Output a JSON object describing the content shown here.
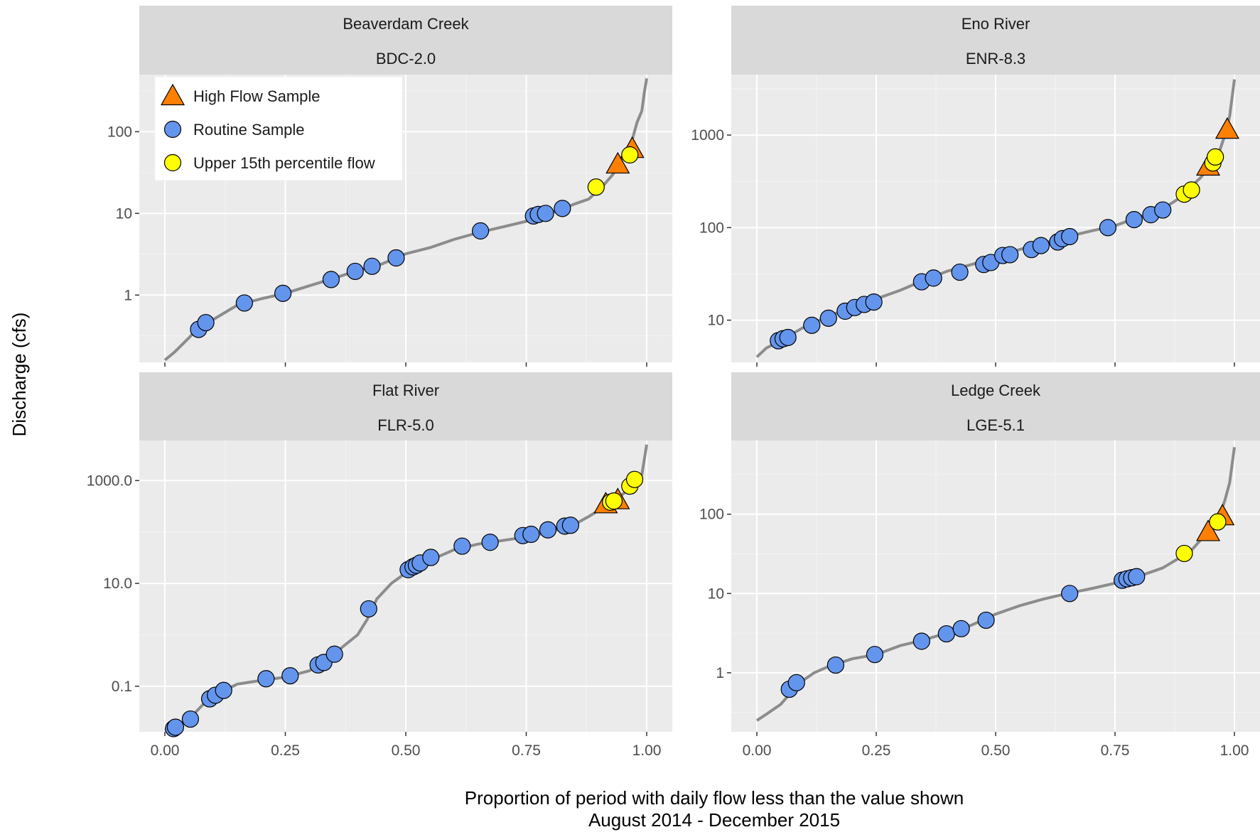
{
  "chart_data": {
    "type": "scatter",
    "ylabel": "Discharge (cfs)",
    "xlabel": "Proportion of period with daily flow less than the value shown",
    "xlabel2": "August 2014 - December 2015",
    "y_scale": "log10",
    "grid": true,
    "legend_position": "top-left",
    "legend": [
      {
        "name": "High Flow Sample",
        "shape": "triangle",
        "color": "#ff7f00"
      },
      {
        "name": "Routine Sample",
        "shape": "circle",
        "color": "#6495ed"
      },
      {
        "name": "Upper 15th percentile flow",
        "shape": "circle",
        "color": "#ffff00"
      }
    ],
    "colors": {
      "curve": "#8c8c8c",
      "panel": "#ebebeb",
      "strip": "#d9d9d9",
      "grid": "#ffffff"
    },
    "x_ticks": [
      "0.00",
      "0.25",
      "0.50",
      "0.75",
      "1.00"
    ],
    "panels": [
      {
        "title": "Beaverdam Creek",
        "site": "BDC-2.0",
        "ylim": [
          0.15,
          500
        ],
        "y_ticks": [
          {
            "v": 1,
            "label": "1"
          },
          {
            "v": 10,
            "label": "10"
          },
          {
            "v": 100,
            "label": "100"
          }
        ],
        "curve": [
          [
            0.0,
            0.16
          ],
          [
            0.02,
            0.2
          ],
          [
            0.05,
            0.3
          ],
          [
            0.07,
            0.4
          ],
          [
            0.1,
            0.5
          ],
          [
            0.15,
            0.75
          ],
          [
            0.2,
            0.9
          ],
          [
            0.25,
            1.05
          ],
          [
            0.3,
            1.3
          ],
          [
            0.35,
            1.6
          ],
          [
            0.4,
            2.0
          ],
          [
            0.45,
            2.4
          ],
          [
            0.5,
            3.2
          ],
          [
            0.55,
            3.8
          ],
          [
            0.6,
            4.8
          ],
          [
            0.65,
            5.8
          ],
          [
            0.7,
            6.8
          ],
          [
            0.75,
            8.0
          ],
          [
            0.8,
            10.0
          ],
          [
            0.85,
            13.0
          ],
          [
            0.88,
            15.0
          ],
          [
            0.91,
            22
          ],
          [
            0.93,
            30
          ],
          [
            0.95,
            48
          ],
          [
            0.97,
            80
          ],
          [
            0.98,
            130
          ],
          [
            0.99,
            180
          ],
          [
            0.995,
            300
          ],
          [
            1.0,
            450
          ]
        ],
        "routine": [
          [
            0.07,
            0.38
          ],
          [
            0.085,
            0.46
          ],
          [
            0.165,
            0.8
          ],
          [
            0.245,
            1.05
          ],
          [
            0.345,
            1.55
          ],
          [
            0.395,
            1.95
          ],
          [
            0.43,
            2.25
          ],
          [
            0.48,
            2.85
          ],
          [
            0.655,
            6.1
          ],
          [
            0.765,
            9.3
          ],
          [
            0.775,
            9.7
          ],
          [
            0.79,
            10.0
          ],
          [
            0.825,
            11.5
          ]
        ],
        "high_flow": [
          [
            0.94,
            40
          ],
          [
            0.97,
            62
          ]
        ],
        "upper15": [
          [
            0.895,
            21
          ],
          [
            0.965,
            52
          ]
        ]
      },
      {
        "title": "Eno River",
        "site": "ENR-8.3",
        "ylim": [
          3.5,
          4500
        ],
        "y_ticks": [
          {
            "v": 10,
            "label": "10"
          },
          {
            "v": 100,
            "label": "100"
          },
          {
            "v": 1000,
            "label": "1000"
          }
        ],
        "curve": [
          [
            0.0,
            4.0
          ],
          [
            0.02,
            5.0
          ],
          [
            0.05,
            6.0
          ],
          [
            0.1,
            8.5
          ],
          [
            0.15,
            11
          ],
          [
            0.2,
            14
          ],
          [
            0.25,
            17
          ],
          [
            0.3,
            21
          ],
          [
            0.35,
            27
          ],
          [
            0.4,
            34
          ],
          [
            0.45,
            40
          ],
          [
            0.5,
            48
          ],
          [
            0.55,
            58
          ],
          [
            0.6,
            68
          ],
          [
            0.65,
            80
          ],
          [
            0.7,
            92
          ],
          [
            0.75,
            105
          ],
          [
            0.8,
            130
          ],
          [
            0.85,
            160
          ],
          [
            0.88,
            200
          ],
          [
            0.9,
            250
          ],
          [
            0.93,
            350
          ],
          [
            0.95,
            480
          ],
          [
            0.97,
            700
          ],
          [
            0.98,
            1000
          ],
          [
            0.99,
            1600
          ],
          [
            1.0,
            4000
          ]
        ],
        "routine": [
          [
            0.045,
            6.0
          ],
          [
            0.055,
            6.3
          ],
          [
            0.065,
            6.5
          ],
          [
            0.115,
            8.8
          ],
          [
            0.15,
            10.5
          ],
          [
            0.185,
            12.5
          ],
          [
            0.205,
            13.7
          ],
          [
            0.225,
            14.8
          ],
          [
            0.245,
            15.7
          ],
          [
            0.345,
            26
          ],
          [
            0.37,
            28.5
          ],
          [
            0.425,
            33
          ],
          [
            0.475,
            40
          ],
          [
            0.49,
            42
          ],
          [
            0.515,
            50
          ],
          [
            0.53,
            51
          ],
          [
            0.575,
            58
          ],
          [
            0.595,
            64
          ],
          [
            0.63,
            70
          ],
          [
            0.64,
            76
          ],
          [
            0.655,
            80
          ],
          [
            0.735,
            100
          ],
          [
            0.79,
            122
          ],
          [
            0.825,
            138
          ],
          [
            0.85,
            155
          ]
        ],
        "high_flow": [
          [
            0.945,
            460
          ],
          [
            0.985,
            1150
          ]
        ],
        "upper15": [
          [
            0.895,
            230
          ],
          [
            0.91,
            255
          ],
          [
            0.955,
            500
          ],
          [
            0.96,
            580
          ]
        ]
      },
      {
        "title": "Flat River",
        "site": "FLR-5.0",
        "ylim": [
          0.013,
          6000
        ],
        "y_ticks": [
          {
            "v": 0.1,
            "label": "0.1"
          },
          {
            "v": 10,
            "label": "10.0"
          },
          {
            "v": 1000,
            "label": "1000.0"
          }
        ],
        "curve": [
          [
            0.0,
            0.014
          ],
          [
            0.02,
            0.016
          ],
          [
            0.05,
            0.023
          ],
          [
            0.08,
            0.045
          ],
          [
            0.1,
            0.06
          ],
          [
            0.12,
            0.08
          ],
          [
            0.15,
            0.11
          ],
          [
            0.2,
            0.13
          ],
          [
            0.25,
            0.15
          ],
          [
            0.3,
            0.2
          ],
          [
            0.33,
            0.3
          ],
          [
            0.36,
            0.5
          ],
          [
            0.4,
            1.0
          ],
          [
            0.42,
            2.0
          ],
          [
            0.44,
            5.0
          ],
          [
            0.47,
            10.0
          ],
          [
            0.5,
            16
          ],
          [
            0.53,
            22
          ],
          [
            0.55,
            28
          ],
          [
            0.6,
            45
          ],
          [
            0.65,
            58
          ],
          [
            0.7,
            68
          ],
          [
            0.75,
            80
          ],
          [
            0.8,
            100
          ],
          [
            0.85,
            140
          ],
          [
            0.88,
            200
          ],
          [
            0.91,
            300
          ],
          [
            0.94,
            450
          ],
          [
            0.96,
            650
          ],
          [
            0.98,
            900
          ],
          [
            0.99,
            1300
          ],
          [
            1.0,
            5000
          ]
        ],
        "routine": [
          [
            0.018,
            0.015
          ],
          [
            0.022,
            0.016
          ],
          [
            0.053,
            0.023
          ],
          [
            0.093,
            0.057
          ],
          [
            0.105,
            0.067
          ],
          [
            0.122,
            0.083
          ],
          [
            0.21,
            0.14
          ],
          [
            0.26,
            0.16
          ],
          [
            0.318,
            0.26
          ],
          [
            0.33,
            0.29
          ],
          [
            0.352,
            0.42
          ],
          [
            0.423,
            3.2
          ],
          [
            0.505,
            18.5
          ],
          [
            0.515,
            21
          ],
          [
            0.522,
            22.5
          ],
          [
            0.53,
            25
          ],
          [
            0.552,
            32
          ],
          [
            0.617,
            53
          ],
          [
            0.675,
            63
          ],
          [
            0.743,
            85
          ],
          [
            0.76,
            90
          ],
          [
            0.795,
            110
          ],
          [
            0.83,
            130
          ],
          [
            0.842,
            135
          ]
        ],
        "high_flow": [
          [
            0.915,
            350
          ],
          [
            0.94,
            420
          ]
        ],
        "upper15": [
          [
            0.925,
            380
          ],
          [
            0.932,
            400
          ],
          [
            0.965,
            780
          ],
          [
            0.975,
            1050
          ]
        ]
      },
      {
        "title": "Ledge Creek",
        "site": "LGE-5.1",
        "ylim": [
          0.18,
          850
        ],
        "y_ticks": [
          {
            "v": 1,
            "label": "1"
          },
          {
            "v": 10,
            "label": "10"
          },
          {
            "v": 100,
            "label": "100"
          }
        ],
        "curve": [
          [
            0.0,
            0.25
          ],
          [
            0.02,
            0.3
          ],
          [
            0.05,
            0.4
          ],
          [
            0.07,
            0.55
          ],
          [
            0.09,
            0.75
          ],
          [
            0.12,
            1.0
          ],
          [
            0.15,
            1.2
          ],
          [
            0.2,
            1.5
          ],
          [
            0.25,
            1.7
          ],
          [
            0.3,
            2.2
          ],
          [
            0.35,
            2.6
          ],
          [
            0.4,
            3.2
          ],
          [
            0.45,
            4.0
          ],
          [
            0.5,
            5.5
          ],
          [
            0.55,
            7.0
          ],
          [
            0.6,
            8.5
          ],
          [
            0.65,
            10.0
          ],
          [
            0.7,
            11.5
          ],
          [
            0.75,
            13.5
          ],
          [
            0.8,
            16.5
          ],
          [
            0.85,
            21
          ],
          [
            0.88,
            27
          ],
          [
            0.91,
            35
          ],
          [
            0.93,
            48
          ],
          [
            0.95,
            70
          ],
          [
            0.97,
            100
          ],
          [
            0.98,
            150
          ],
          [
            0.99,
            250
          ],
          [
            1.0,
            700
          ]
        ],
        "routine": [
          [
            0.068,
            0.62
          ],
          [
            0.083,
            0.75
          ],
          [
            0.165,
            1.25
          ],
          [
            0.247,
            1.7
          ],
          [
            0.345,
            2.5
          ],
          [
            0.397,
            3.1
          ],
          [
            0.428,
            3.6
          ],
          [
            0.48,
            4.6
          ],
          [
            0.655,
            10.0
          ],
          [
            0.765,
            14.7
          ],
          [
            0.775,
            15.3
          ],
          [
            0.785,
            15.8
          ],
          [
            0.795,
            16.3
          ]
        ],
        "high_flow": [
          [
            0.945,
            60
          ],
          [
            0.975,
            95
          ]
        ],
        "upper15": [
          [
            0.895,
            32
          ],
          [
            0.965,
            80
          ]
        ]
      }
    ]
  }
}
